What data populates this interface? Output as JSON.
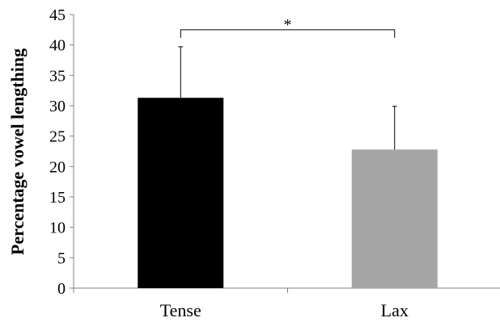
{
  "chart_data": {
    "type": "bar",
    "title": "",
    "xlabel": "",
    "ylabel": "Percentage vowel lengthing",
    "ylim": [
      0,
      45
    ],
    "yticks": [
      0,
      5,
      10,
      15,
      20,
      25,
      30,
      35,
      40,
      45
    ],
    "grid": false,
    "categories": [
      "Tense",
      "Lax"
    ],
    "values": [
      31.3,
      22.8
    ],
    "error_upper": [
      39.7,
      29.9
    ],
    "bar_colors": [
      "#000000",
      "#a6a6a6"
    ],
    "significance": {
      "between": [
        0,
        1
      ],
      "label": "*",
      "y": 42.5
    }
  }
}
